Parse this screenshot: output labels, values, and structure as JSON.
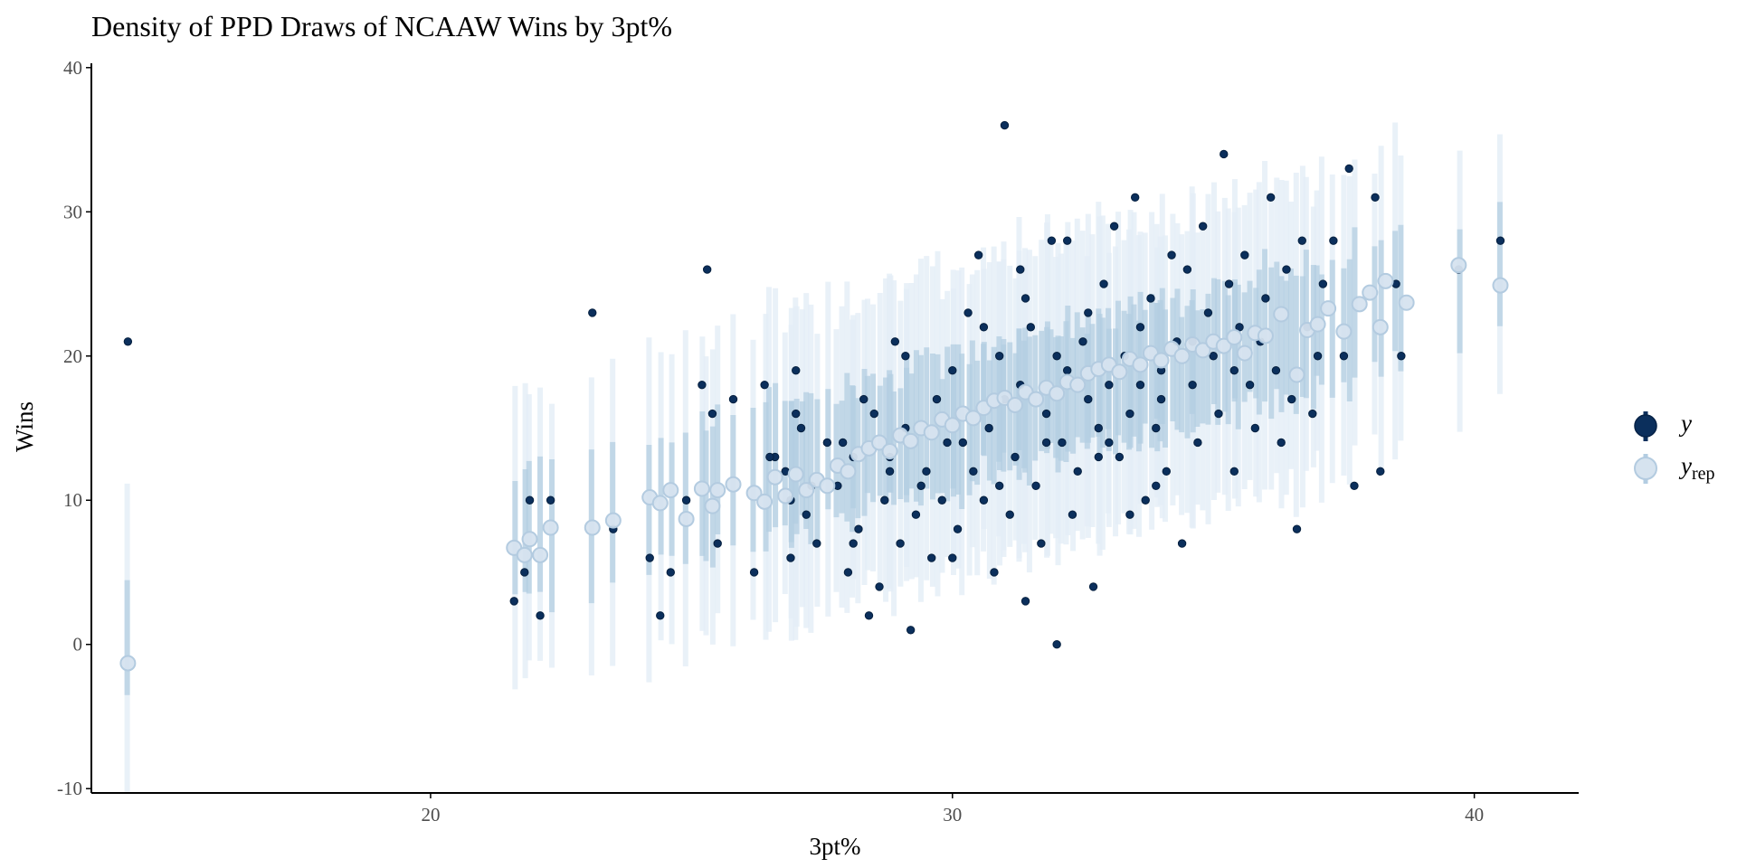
{
  "chart_data": {
    "type": "scatter",
    "title": "Density of PPD Draws of NCAAW Wins by 3pt%",
    "xlabel": "3pt%",
    "ylabel": "Wins",
    "xlim": [
      13.5,
      42
    ],
    "ylim": [
      -10.3,
      40.3
    ],
    "x_ticks": [
      20,
      30,
      40
    ],
    "y_ticks": [
      -10,
      0,
      10,
      20,
      30,
      40
    ],
    "grid": false,
    "legend": {
      "position": "right",
      "entries": [
        {
          "label": "y",
          "sub": "",
          "color": "#0b2f5c"
        },
        {
          "label": "y",
          "sub": "rep",
          "color": "#c6d9ea"
        }
      ]
    },
    "colors": {
      "observed": "#0b2f5c",
      "replicated_point": "#d6e3ef",
      "replicated_point_stroke": "#b3cbe0",
      "inner_interval": "#b3cde2",
      "outer_interval": "#e3edf6"
    },
    "observed_points": [
      [
        14.2,
        21
      ],
      [
        21.6,
        3
      ],
      [
        21.8,
        5
      ],
      [
        21.9,
        10
      ],
      [
        22.1,
        2
      ],
      [
        22.3,
        10
      ],
      [
        23.1,
        23
      ],
      [
        23.5,
        8
      ],
      [
        24.2,
        6
      ],
      [
        24.4,
        2
      ],
      [
        24.6,
        5
      ],
      [
        24.9,
        10
      ],
      [
        25.2,
        18
      ],
      [
        25.3,
        26
      ],
      [
        25.4,
        16
      ],
      [
        25.5,
        7
      ],
      [
        25.8,
        17
      ],
      [
        26.2,
        5
      ],
      [
        26.4,
        18
      ],
      [
        26.6,
        13
      ],
      [
        26.8,
        12
      ],
      [
        26.9,
        6
      ],
      [
        27.0,
        19
      ],
      [
        27.1,
        15
      ],
      [
        27.2,
        9
      ],
      [
        27.3,
        11
      ],
      [
        27.4,
        7
      ],
      [
        27.6,
        14
      ],
      [
        27.8,
        11
      ],
      [
        28.0,
        5
      ],
      [
        28.1,
        13
      ],
      [
        28.2,
        8
      ],
      [
        28.4,
        2
      ],
      [
        28.5,
        16
      ],
      [
        28.6,
        4
      ],
      [
        28.7,
        10
      ],
      [
        28.8,
        12
      ],
      [
        28.9,
        21
      ],
      [
        29.0,
        7
      ],
      [
        29.1,
        15
      ],
      [
        29.2,
        1
      ],
      [
        29.3,
        9
      ],
      [
        29.4,
        11
      ],
      [
        29.6,
        6
      ],
      [
        29.7,
        17
      ],
      [
        29.9,
        14
      ],
      [
        30.0,
        19
      ],
      [
        30.1,
        8
      ],
      [
        30.3,
        23
      ],
      [
        30.4,
        12
      ],
      [
        30.5,
        27
      ],
      [
        30.6,
        10
      ],
      [
        30.7,
        15
      ],
      [
        30.8,
        5
      ],
      [
        30.9,
        20
      ],
      [
        31.0,
        36
      ],
      [
        31.1,
        9
      ],
      [
        31.2,
        13
      ],
      [
        31.3,
        18
      ],
      [
        31.4,
        3
      ],
      [
        31.5,
        22
      ],
      [
        31.6,
        11
      ],
      [
        31.7,
        7
      ],
      [
        31.8,
        16
      ],
      [
        31.9,
        28
      ],
      [
        32.0,
        0
      ],
      [
        32.1,
        14
      ],
      [
        32.2,
        19
      ],
      [
        32.3,
        9
      ],
      [
        32.4,
        12
      ],
      [
        32.5,
        21
      ],
      [
        32.6,
        17
      ],
      [
        32.7,
        4
      ],
      [
        32.8,
        15
      ],
      [
        32.9,
        25
      ],
      [
        33.0,
        18
      ],
      [
        33.1,
        29
      ],
      [
        33.2,
        13
      ],
      [
        33.3,
        20
      ],
      [
        33.4,
        16
      ],
      [
        33.5,
        31
      ],
      [
        33.6,
        22
      ],
      [
        33.7,
        10
      ],
      [
        33.8,
        24
      ],
      [
        33.9,
        15
      ],
      [
        34.0,
        19
      ],
      [
        34.1,
        12
      ],
      [
        34.2,
        27
      ],
      [
        34.3,
        21
      ],
      [
        34.4,
        7
      ],
      [
        34.5,
        26
      ],
      [
        34.6,
        18
      ],
      [
        34.7,
        14
      ],
      [
        34.8,
        29
      ],
      [
        34.9,
        23
      ],
      [
        35.0,
        20
      ],
      [
        35.1,
        16
      ],
      [
        35.2,
        34
      ],
      [
        35.3,
        25
      ],
      [
        35.4,
        12
      ],
      [
        35.5,
        22
      ],
      [
        35.6,
        27
      ],
      [
        35.7,
        18
      ],
      [
        35.8,
        15
      ],
      [
        35.9,
        21
      ],
      [
        36.0,
        24
      ],
      [
        36.1,
        31
      ],
      [
        36.2,
        19
      ],
      [
        36.3,
        14
      ],
      [
        36.4,
        26
      ],
      [
        36.5,
        17
      ],
      [
        36.6,
        8
      ],
      [
        36.7,
        28
      ],
      [
        36.8,
        22
      ],
      [
        36.9,
        16
      ],
      [
        37.0,
        20
      ],
      [
        37.1,
        25
      ],
      [
        37.3,
        28
      ],
      [
        37.5,
        20
      ],
      [
        37.6,
        33
      ],
      [
        37.7,
        11
      ],
      [
        38.1,
        31
      ],
      [
        38.2,
        12
      ],
      [
        38.5,
        25
      ],
      [
        38.6,
        20
      ],
      [
        39.7,
        26
      ],
      [
        40.5,
        28
      ],
      [
        26.5,
        13
      ],
      [
        27.0,
        16
      ],
      [
        28.3,
        17
      ],
      [
        29.5,
        12
      ],
      [
        30.2,
        14
      ],
      [
        31.0,
        17
      ],
      [
        32.0,
        20
      ],
      [
        33.0,
        14
      ],
      [
        34.0,
        17
      ],
      [
        29.8,
        10
      ],
      [
        30.9,
        11
      ],
      [
        32.8,
        13
      ],
      [
        33.6,
        18
      ],
      [
        27.9,
        14
      ],
      [
        28.8,
        13
      ],
      [
        31.8,
        14
      ],
      [
        33.4,
        9
      ],
      [
        34.6,
        21
      ],
      [
        30.6,
        22
      ],
      [
        31.3,
        26
      ],
      [
        29.1,
        20
      ],
      [
        28.1,
        7
      ],
      [
        26.9,
        10
      ],
      [
        32.2,
        28
      ],
      [
        33.9,
        11
      ],
      [
        35.4,
        19
      ],
      [
        30.0,
        6
      ],
      [
        31.4,
        24
      ],
      [
        32.6,
        23
      ]
    ],
    "replicated_means": [
      [
        14.2,
        -1.3
      ],
      [
        21.6,
        6.7
      ],
      [
        21.8,
        6.2
      ],
      [
        21.9,
        7.3
      ],
      [
        22.1,
        6.2
      ],
      [
        22.3,
        8.1
      ],
      [
        23.1,
        8.1
      ],
      [
        23.5,
        8.6
      ],
      [
        24.2,
        10.2
      ],
      [
        24.4,
        9.8
      ],
      [
        24.6,
        10.7
      ],
      [
        24.9,
        8.7
      ],
      [
        25.2,
        10.8
      ],
      [
        25.4,
        9.6
      ],
      [
        25.5,
        10.7
      ],
      [
        25.8,
        11.1
      ],
      [
        26.2,
        10.5
      ],
      [
        26.4,
        9.9
      ],
      [
        26.6,
        11.6
      ],
      [
        26.8,
        10.3
      ],
      [
        27.0,
        11.8
      ],
      [
        27.2,
        10.7
      ],
      [
        27.4,
        11.4
      ],
      [
        27.6,
        11.0
      ],
      [
        27.8,
        12.4
      ],
      [
        28.0,
        12.0
      ],
      [
        28.2,
        13.2
      ],
      [
        28.4,
        13.6
      ],
      [
        28.6,
        14.0
      ],
      [
        28.8,
        13.4
      ],
      [
        29.0,
        14.5
      ],
      [
        29.2,
        14.1
      ],
      [
        29.4,
        15.0
      ],
      [
        29.6,
        14.7
      ],
      [
        29.8,
        15.6
      ],
      [
        30.0,
        15.2
      ],
      [
        30.2,
        16.0
      ],
      [
        30.4,
        15.7
      ],
      [
        30.6,
        16.4
      ],
      [
        30.8,
        16.9
      ],
      [
        31.0,
        17.1
      ],
      [
        31.2,
        16.6
      ],
      [
        31.4,
        17.5
      ],
      [
        31.6,
        17.0
      ],
      [
        31.8,
        17.8
      ],
      [
        32.0,
        17.4
      ],
      [
        32.2,
        18.2
      ],
      [
        32.4,
        18.0
      ],
      [
        32.6,
        18.8
      ],
      [
        32.8,
        19.1
      ],
      [
        33.0,
        19.4
      ],
      [
        33.2,
        18.9
      ],
      [
        33.4,
        19.8
      ],
      [
        33.6,
        19.4
      ],
      [
        33.8,
        20.2
      ],
      [
        34.0,
        19.7
      ],
      [
        34.2,
        20.5
      ],
      [
        34.4,
        20.0
      ],
      [
        34.6,
        20.8
      ],
      [
        34.8,
        20.4
      ],
      [
        35.0,
        21.0
      ],
      [
        35.2,
        20.7
      ],
      [
        35.4,
        21.3
      ],
      [
        35.6,
        20.2
      ],
      [
        35.8,
        21.6
      ],
      [
        36.0,
        21.4
      ],
      [
        36.3,
        22.9
      ],
      [
        36.6,
        18.7
      ],
      [
        36.8,
        21.8
      ],
      [
        37.0,
        22.2
      ],
      [
        37.2,
        23.3
      ],
      [
        37.5,
        21.7
      ],
      [
        37.8,
        23.6
      ],
      [
        38.0,
        24.4
      ],
      [
        38.2,
        22.0
      ],
      [
        38.3,
        25.2
      ],
      [
        38.7,
        23.7
      ],
      [
        39.7,
        26.3
      ],
      [
        40.5,
        24.9
      ]
    ]
  }
}
